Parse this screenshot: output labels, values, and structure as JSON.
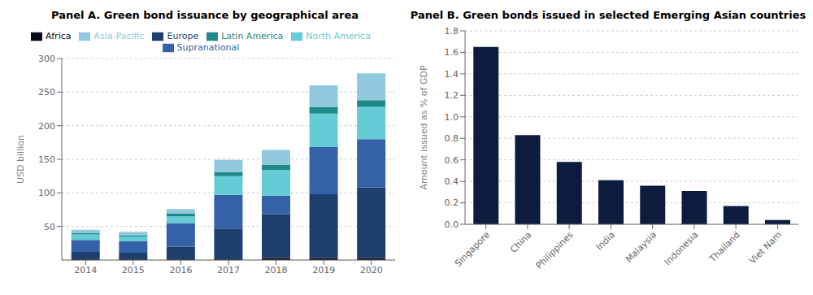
{
  "chart_data": [
    {
      "type": "bar",
      "title": "Panel A. Green bond issuance by geographical area",
      "y_label": "USD billion",
      "categories": [
        "2014",
        "2015",
        "2016",
        "2017",
        "2018",
        "2019",
        "2020"
      ],
      "series": [
        {
          "name": "Africa",
          "color": "#0a0a1a",
          "values": [
            2,
            2,
            2,
            2,
            3,
            3,
            3
          ]
        },
        {
          "name": "Europe",
          "color": "#1c3f6e",
          "values": [
            10,
            9,
            18,
            45,
            65,
            95,
            105
          ]
        },
        {
          "name": "Supranational",
          "color": "#3561a8",
          "values": [
            18,
            17,
            35,
            50,
            28,
            70,
            72
          ]
        },
        {
          "name": "North America",
          "color": "#63ccd6",
          "values": [
            8,
            7,
            10,
            28,
            38,
            50,
            48
          ]
        },
        {
          "name": "Latin America",
          "color": "#1e8a8a",
          "values": [
            2,
            2,
            4,
            6,
            8,
            10,
            10
          ]
        },
        {
          "name": "Asia-Pacific",
          "color": "#90c8de",
          "values": [
            5,
            5,
            7,
            18,
            22,
            32,
            40
          ]
        }
      ],
      "stacked": true,
      "ylim": [
        0,
        300
      ],
      "yticks": [
        50,
        100,
        150,
        200,
        250,
        300
      ],
      "grid": true,
      "legend": "top"
    },
    {
      "type": "bar",
      "title": "Panel B. Green bonds issued in selected Emerging Asian countries",
      "y_label": "Amount issued as % of GDP",
      "categories": [
        "Singapore",
        "China",
        "Philippines",
        "India",
        "Malaysia",
        "Indonesia",
        "Thailand",
        "Viet Nam"
      ],
      "values": [
        1.65,
        0.83,
        0.58,
        0.41,
        0.36,
        0.31,
        0.17,
        0.04
      ],
      "color": "#0d1b3e",
      "ylim": [
        0,
        1.8
      ],
      "yticks": [
        {
          "value": 0,
          "label": "0.0"
        },
        0.2,
        0.4,
        0.6,
        0.8,
        {
          "value": 1,
          "label": "1.0"
        },
        1.2,
        1.4,
        1.6,
        1.8
      ],
      "grid": true
    }
  ]
}
